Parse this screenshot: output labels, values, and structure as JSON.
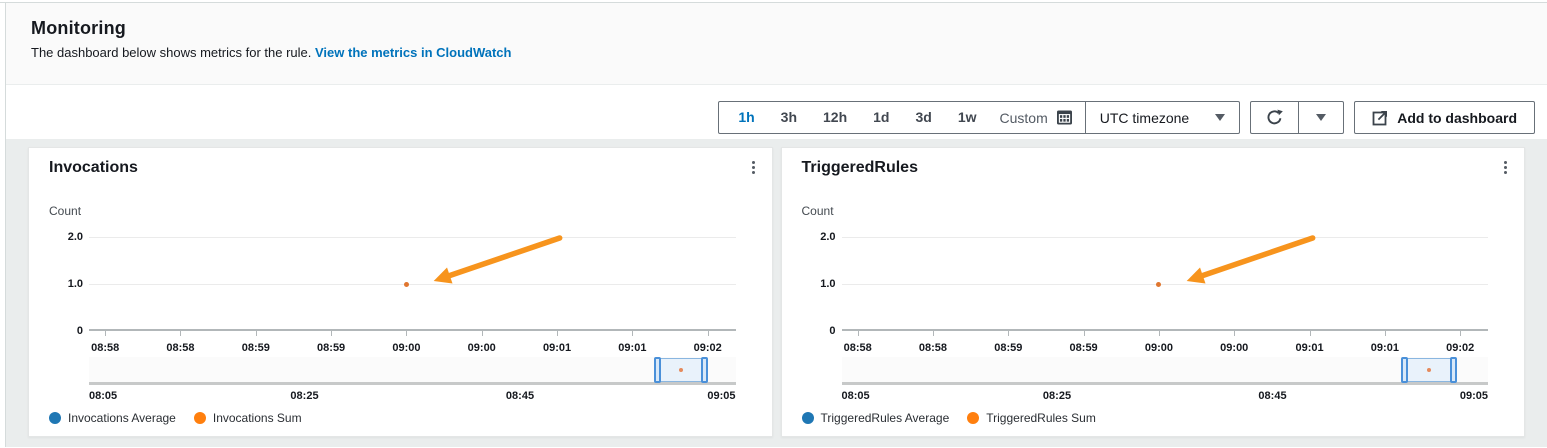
{
  "header": {
    "title": "Monitoring",
    "subtitle": "The dashboard below shows metrics for the rule.",
    "link_label": "View the metrics in CloudWatch"
  },
  "toolbar": {
    "ranges": [
      "1h",
      "3h",
      "12h",
      "1d",
      "3d",
      "1w"
    ],
    "selected_range": "1h",
    "custom_label": "Custom",
    "timezone_label": "UTC timezone",
    "add_to_dashboard_label": "Add to dashboard"
  },
  "icons": {
    "calendar": "calendar-grid",
    "refresh": "circular-arrow",
    "caret": "triangle-down",
    "external_link": "box-with-arrow",
    "kebab": "vertical-three-dots"
  },
  "colors": {
    "accent_link": "#0073bb",
    "average_series": "#1f77b4",
    "sum_series": "#ff7f0e",
    "sum_point": "#e0762f",
    "annotation_arrow": "#f7941d"
  },
  "chart_data": [
    {
      "type": "scatter",
      "title": "Invocations",
      "ylabel": "Count",
      "ylim": [
        0,
        2.15
      ],
      "yticks": [
        {
          "label": "2.0",
          "value": 2.0
        },
        {
          "label": "1.0",
          "value": 1.0
        },
        {
          "label": "0",
          "value": 0
        }
      ],
      "xticks": [
        "08:58",
        "08:58",
        "08:59",
        "08:59",
        "09:00",
        "09:00",
        "09:01",
        "09:01",
        "09:02"
      ],
      "series": [
        {
          "name": "Invocations Average",
          "color": "#1f77b4",
          "points": []
        },
        {
          "name": "Invocations Sum",
          "color": "#e0762f",
          "points": [
            {
              "x": "09:00",
              "tick_index": 4,
              "y": 1.0
            }
          ]
        }
      ],
      "annotation_arrow": {
        "points_at": {
          "x": "09:00",
          "y": 1.0
        },
        "color": "#f7941d"
      },
      "brush": {
        "labels": [
          "08:05",
          "08:25",
          "08:45",
          "09:05"
        ],
        "selection_start_pct": 87.8,
        "selection_end_pct": 95.3
      },
      "legend_position": "bottom",
      "grid": true
    },
    {
      "type": "scatter",
      "title": "TriggeredRules",
      "ylabel": "Count",
      "ylim": [
        0,
        2.15
      ],
      "yticks": [
        {
          "label": "2.0",
          "value": 2.0
        },
        {
          "label": "1.0",
          "value": 1.0
        },
        {
          "label": "0",
          "value": 0
        }
      ],
      "xticks": [
        "08:58",
        "08:58",
        "08:59",
        "08:59",
        "09:00",
        "09:00",
        "09:01",
        "09:01",
        "09:02"
      ],
      "series": [
        {
          "name": "TriggeredRules Average",
          "color": "#1f77b4",
          "points": []
        },
        {
          "name": "TriggeredRules Sum",
          "color": "#e0762f",
          "points": [
            {
              "x": "09:00",
              "tick_index": 4,
              "y": 1.0
            }
          ]
        }
      ],
      "annotation_arrow": {
        "points_at": {
          "x": "09:00",
          "y": 1.0
        },
        "color": "#f7941d"
      },
      "brush": {
        "labels": [
          "08:05",
          "08:25",
          "08:45",
          "09:05"
        ],
        "selection_start_pct": 87.0,
        "selection_end_pct": 94.7
      },
      "legend_position": "bottom",
      "grid": true
    }
  ]
}
